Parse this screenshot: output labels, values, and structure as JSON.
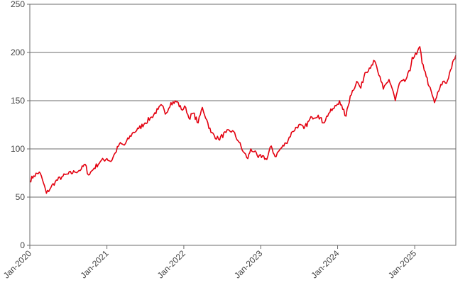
{
  "chart_data": {
    "type": "line",
    "title": "",
    "xlabel": "",
    "ylabel": "",
    "ylim": [
      0,
      250
    ],
    "yticks": [
      0,
      50,
      100,
      150,
      200,
      250
    ],
    "xlim": [
      "2020-01-01",
      "2025-07-15"
    ],
    "xticks": [
      {
        "date": "2020-01-01",
        "label": "Jan-2020"
      },
      {
        "date": "2021-01-01",
        "label": "Jan-2021"
      },
      {
        "date": "2022-01-01",
        "label": "Jan-2022"
      },
      {
        "date": "2023-01-01",
        "label": "Jan-2023"
      },
      {
        "date": "2024-01-01",
        "label": "Jan-2024"
      },
      {
        "date": "2025-01-01",
        "label": "Jan-2025"
      }
    ],
    "grid": "horizontal",
    "legend": "none",
    "series": [
      {
        "color": "#e3000f",
        "points": [
          [
            "2020-01-01",
            67
          ],
          [
            "2020-01-20",
            72
          ],
          [
            "2020-02-15",
            76
          ],
          [
            "2020-03-01",
            68
          ],
          [
            "2020-03-20",
            54
          ],
          [
            "2020-04-10",
            60
          ],
          [
            "2020-05-01",
            66
          ],
          [
            "2020-06-01",
            71
          ],
          [
            "2020-07-01",
            74
          ],
          [
            "2020-08-01",
            76
          ],
          [
            "2020-09-01",
            79
          ],
          [
            "2020-09-20",
            84
          ],
          [
            "2020-10-05",
            73
          ],
          [
            "2020-11-01",
            80
          ],
          [
            "2020-12-01",
            87
          ],
          [
            "2021-01-01",
            90
          ],
          [
            "2021-01-20",
            87
          ],
          [
            "2021-02-10",
            96
          ],
          [
            "2021-03-01",
            105
          ],
          [
            "2021-03-25",
            104
          ],
          [
            "2021-05-01",
            116
          ],
          [
            "2021-06-01",
            121
          ],
          [
            "2021-07-01",
            127
          ],
          [
            "2021-08-01",
            133
          ],
          [
            "2021-09-01",
            141
          ],
          [
            "2021-09-20",
            145
          ],
          [
            "2021-10-05",
            136
          ],
          [
            "2021-11-01",
            148
          ],
          [
            "2021-12-01",
            149
          ],
          [
            "2021-12-20",
            141
          ],
          [
            "2022-01-10",
            143
          ],
          [
            "2022-01-25",
            132
          ],
          [
            "2022-02-15",
            137
          ],
          [
            "2022-03-10",
            127
          ],
          [
            "2022-03-30",
            143
          ],
          [
            "2022-04-20",
            130
          ],
          [
            "2022-05-10",
            117
          ],
          [
            "2022-06-15",
            110
          ],
          [
            "2022-07-20",
            117
          ],
          [
            "2022-08-20",
            119
          ],
          [
            "2022-09-20",
            107
          ],
          [
            "2022-10-10",
            97
          ],
          [
            "2022-11-01",
            90
          ],
          [
            "2022-11-15",
            100
          ],
          [
            "2022-12-01",
            97
          ],
          [
            "2022-12-20",
            91
          ],
          [
            "2023-01-10",
            93
          ],
          [
            "2023-01-30",
            89
          ],
          [
            "2023-02-20",
            103
          ],
          [
            "2023-03-10",
            92
          ],
          [
            "2023-04-01",
            99
          ],
          [
            "2023-05-01",
            106
          ],
          [
            "2023-06-01",
            118
          ],
          [
            "2023-07-01",
            125
          ],
          [
            "2023-07-25",
            121
          ],
          [
            "2023-09-01",
            133
          ],
          [
            "2023-10-01",
            135
          ],
          [
            "2023-10-25",
            127
          ],
          [
            "2023-11-20",
            137
          ],
          [
            "2023-12-15",
            142
          ],
          [
            "2024-01-10",
            150
          ],
          [
            "2024-01-25",
            141
          ],
          [
            "2024-02-10",
            134
          ],
          [
            "2024-03-01",
            155
          ],
          [
            "2024-04-01",
            170
          ],
          [
            "2024-04-20",
            163
          ],
          [
            "2024-05-10",
            179
          ],
          [
            "2024-06-10",
            187
          ],
          [
            "2024-06-25",
            191
          ],
          [
            "2024-07-10",
            180
          ],
          [
            "2024-07-25",
            170
          ],
          [
            "2024-08-05",
            162
          ],
          [
            "2024-09-01",
            172
          ],
          [
            "2024-09-20",
            160
          ],
          [
            "2024-10-01",
            150
          ],
          [
            "2024-10-20",
            168
          ],
          [
            "2024-11-15",
            170
          ],
          [
            "2024-12-10",
            181
          ],
          [
            "2024-12-20",
            195
          ],
          [
            "2025-01-10",
            198
          ],
          [
            "2025-01-25",
            206
          ],
          [
            "2025-02-05",
            189
          ],
          [
            "2025-02-20",
            180
          ],
          [
            "2025-03-10",
            165
          ],
          [
            "2025-04-05",
            148
          ],
          [
            "2025-04-25",
            160
          ],
          [
            "2025-05-15",
            170
          ],
          [
            "2025-06-01",
            168
          ],
          [
            "2025-06-20",
            182
          ],
          [
            "2025-07-15",
            197
          ]
        ]
      }
    ]
  }
}
